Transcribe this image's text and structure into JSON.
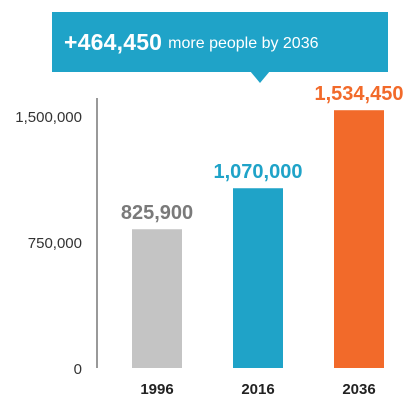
{
  "callout": {
    "value": "+464,450",
    "text": "more people by 2036",
    "color": "#1fa3c8"
  },
  "chart_data": {
    "type": "bar",
    "title": "",
    "xlabel": "",
    "ylabel": "",
    "categories": [
      "1996",
      "2016",
      "2036"
    ],
    "values": [
      825900,
      1070000,
      1534450
    ],
    "value_labels": [
      "825,900",
      "1,070,000",
      "1,534,450"
    ],
    "bar_colors": [
      "#c4c4c4",
      "#1fa3c8",
      "#f26a2a"
    ],
    "label_colors": [
      "#7a7a7a",
      "#1fa3c8",
      "#f26a2a"
    ],
    "ylim": [
      0,
      1500000
    ],
    "yticks": [
      0,
      750000,
      1500000
    ],
    "ytick_labels": [
      "0",
      "750,000",
      "1,500,000"
    ],
    "grid": false,
    "legend": "none"
  }
}
